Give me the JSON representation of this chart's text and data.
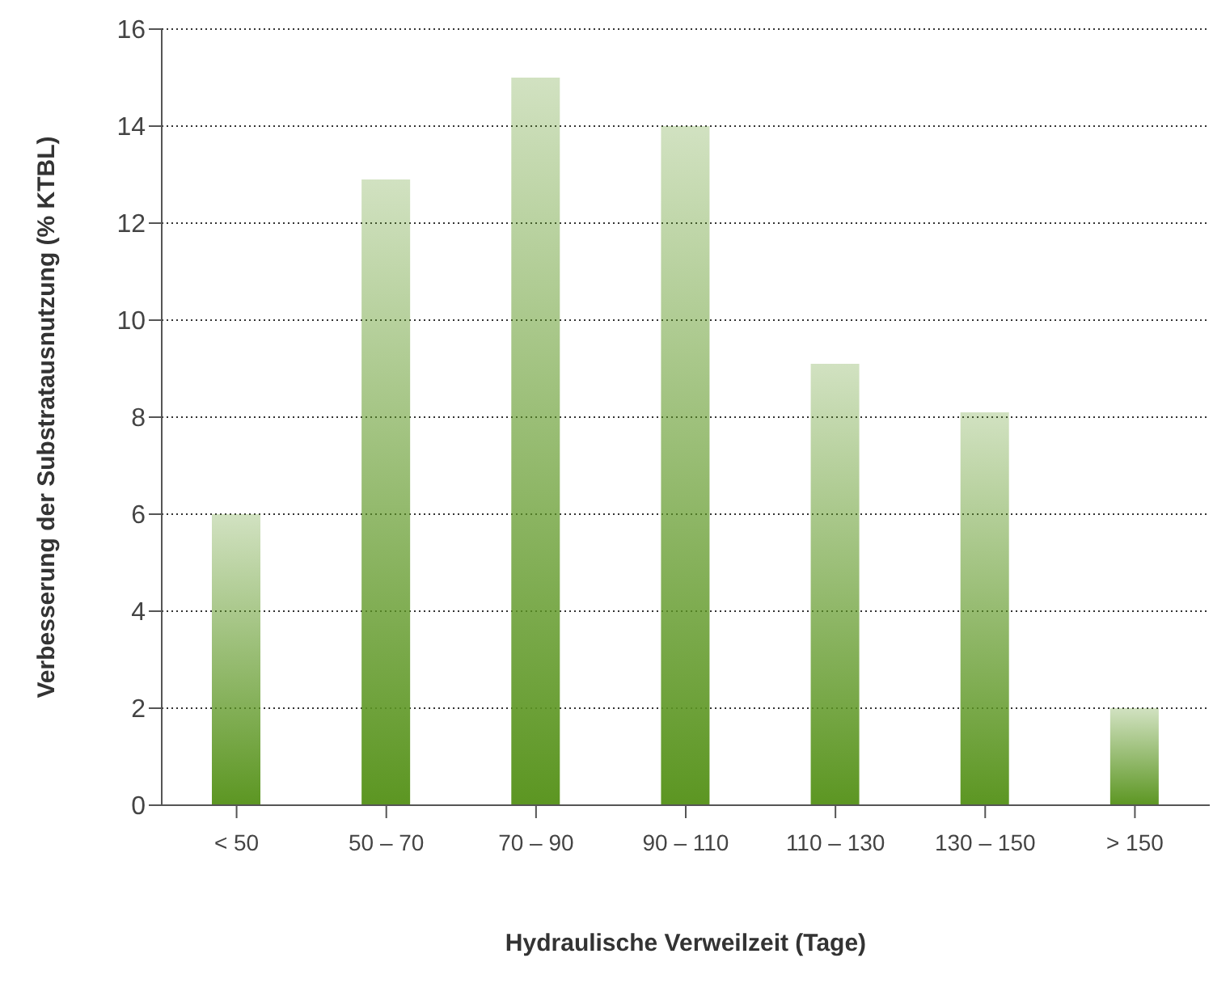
{
  "chart_data": {
    "type": "bar",
    "xlabel": "Hydraulische Verweilzeit (Tage)",
    "ylabel": "Verbesserung der Substratausnutzung (% KTBL)",
    "categories": [
      "< 50",
      "50 – 70",
      "70 – 90",
      "90 – 110",
      "110 – 130",
      "130 – 150",
      "> 150"
    ],
    "values": [
      6,
      12.9,
      15,
      14,
      9.1,
      8.1,
      2
    ],
    "color": "#5c9622",
    "ylim": [
      0,
      16
    ],
    "yticks": [
      0,
      2,
      4,
      6,
      8,
      10,
      12,
      14,
      16
    ],
    "grid": "y"
  }
}
